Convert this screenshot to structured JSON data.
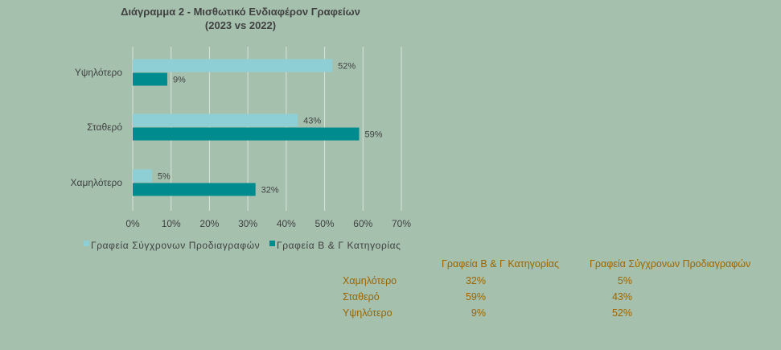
{
  "chart_data": {
    "type": "bar",
    "orientation": "horizontal",
    "title": "Διάγραμμα 2 - Μισθωτικό Ενδιαφέρον Γραφείων",
    "subtitle": "(2023 vs 2022)",
    "categories": [
      "Υψηλότερο",
      "Σταθερό",
      "Χαμηλότερο"
    ],
    "series": [
      {
        "name": "Γραφεία Σύγχρονων Προδιαγραφών",
        "values": [
          52,
          43,
          5
        ],
        "labels": [
          "52%",
          "43%",
          "5%"
        ],
        "color": "#8ecfd6"
      },
      {
        "name": "Γραφεία Β & Γ Κατηγορίας",
        "values": [
          9,
          59,
          32
        ],
        "labels": [
          "9%",
          "59%",
          "32%"
        ],
        "color": "#008b8f"
      }
    ],
    "xlim": [
      0,
      70
    ],
    "xticks": [
      "0%",
      "10%",
      "20%",
      "30%",
      "40%",
      "50%",
      "60%",
      "70%"
    ],
    "grid": true,
    "legend": "bottom"
  },
  "table": {
    "headers": [
      "Γραφεία Β & Γ Κατηγορίας",
      "Γραφεία Σύγχρονων Προδιαγραφών"
    ],
    "rows": [
      {
        "label": "Χαμηλότερο",
        "b_g": "32%",
        "modern": "5%"
      },
      {
        "label": "Σταθερό",
        "b_g": "59%",
        "modern": "43%"
      },
      {
        "label": "Υψηλότερο",
        "b_g": "9%",
        "modern": "52%"
      }
    ]
  }
}
